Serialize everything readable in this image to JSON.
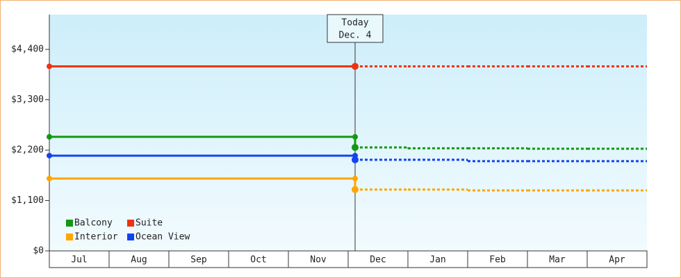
{
  "chart_data": {
    "type": "step",
    "categories": [
      "Jul",
      "Aug",
      "Sep",
      "Oct",
      "Nov",
      "Dec",
      "Jan",
      "Feb",
      "Mar",
      "Apr"
    ],
    "series": [
      {
        "name": "Balcony",
        "color": "#119911",
        "values": [
          2490,
          2490,
          2490,
          2490,
          2490,
          2260,
          2240,
          2240,
          2230,
          2230
        ]
      },
      {
        "name": "Suite",
        "color": "#ee3311",
        "values": [
          4030,
          4030,
          4030,
          4030,
          4030,
          4030,
          4030,
          4030,
          4030,
          4030
        ]
      },
      {
        "name": "Interior",
        "color": "#ffa500",
        "values": [
          1580,
          1580,
          1580,
          1580,
          1580,
          1340,
          1340,
          1320,
          1320,
          1320
        ]
      },
      {
        "name": "Ocean View",
        "color": "#1144ee",
        "values": [
          2080,
          2080,
          2080,
          2080,
          2080,
          1990,
          1990,
          1960,
          1960,
          1960
        ]
      }
    ],
    "ylim": [
      0,
      5160
    ],
    "yticks": [
      {
        "value": 0,
        "label": "$0"
      },
      {
        "value": 1100,
        "label": "$1,100"
      },
      {
        "value": 2200,
        "label": "$2,200"
      },
      {
        "value": 3300,
        "label": "$3,300"
      },
      {
        "value": 4400,
        "label": "$4,400"
      }
    ],
    "today": {
      "label": "Today",
      "date": "Dec. 4",
      "category": "Dec"
    },
    "legend": "lower-left"
  }
}
